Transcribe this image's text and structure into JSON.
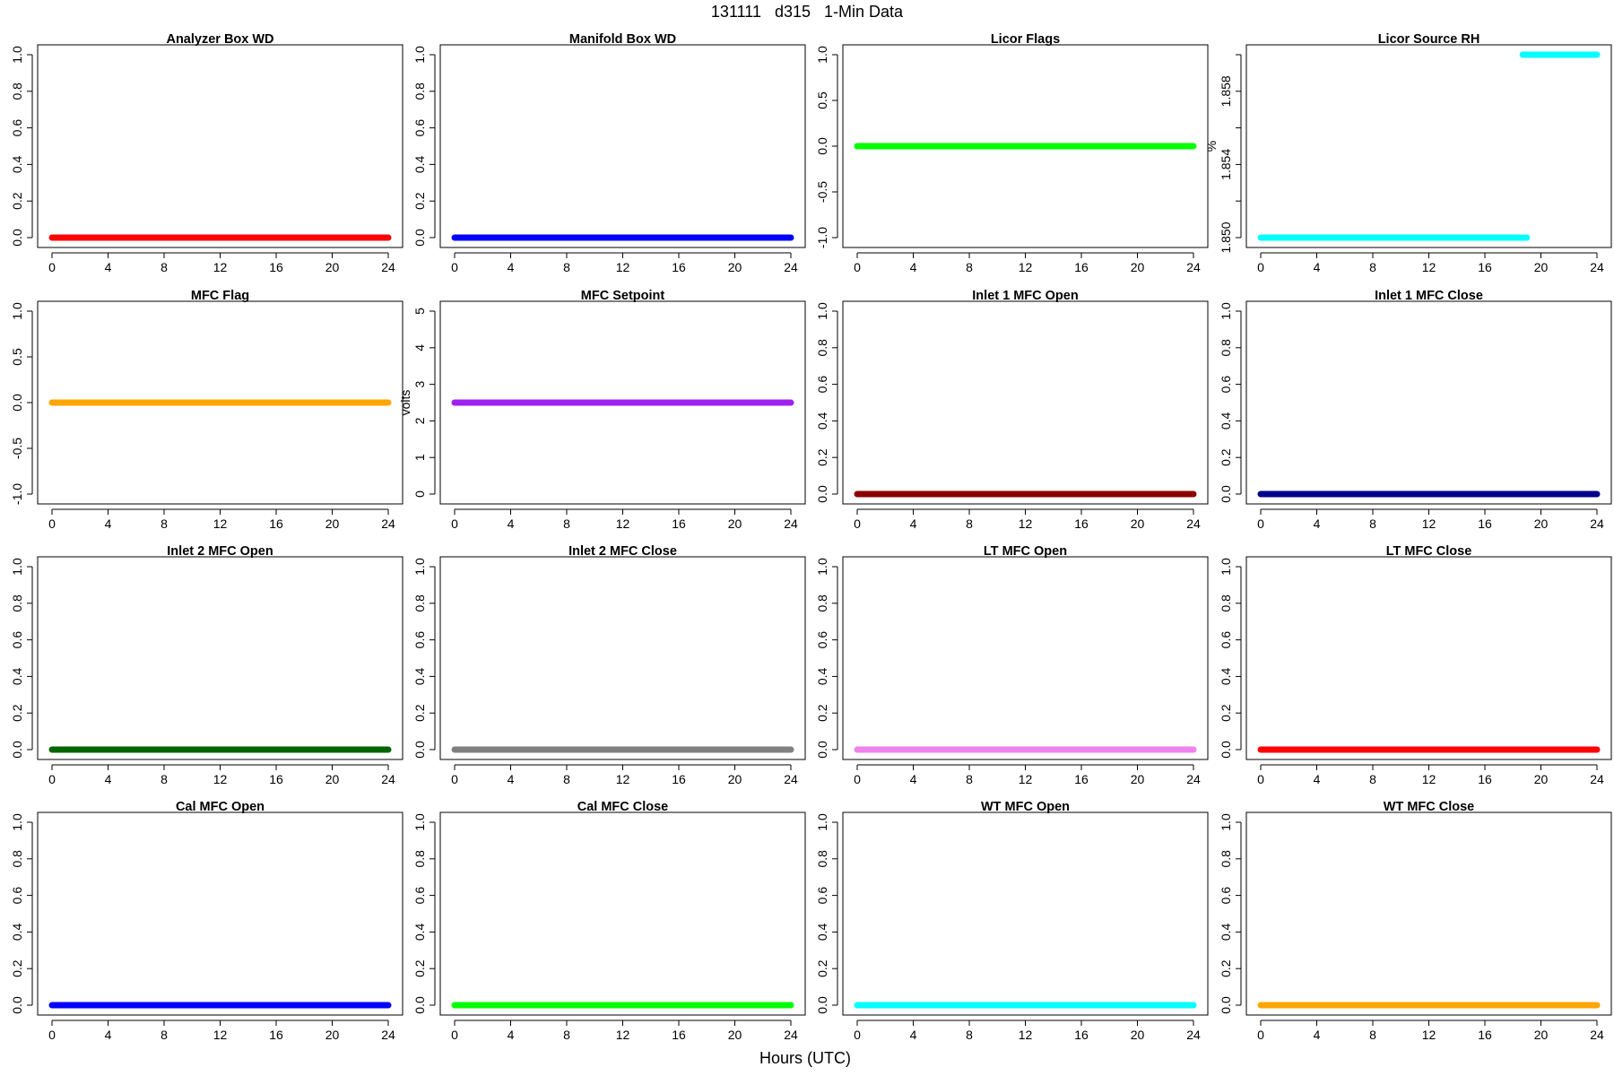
{
  "figure": {
    "suptitle": "131111   d315   1-Min Data",
    "xlabel": "Hours (UTC)"
  },
  "chart_data": [
    {
      "type": "scatter",
      "title": "Analyzer Box WD",
      "ylabel": "",
      "xlim": [
        0,
        24
      ],
      "ylim": [
        0,
        1
      ],
      "xticks": [
        0,
        4,
        8,
        12,
        16,
        20,
        24
      ],
      "yticks": [
        0,
        0.2,
        0.4,
        0.6,
        0.8,
        1
      ],
      "ytick_labels": [
        "0.0",
        "0.2",
        "0.4",
        "0.6",
        "0.8",
        "1.0"
      ],
      "series": [
        {
          "color": "#ff0000",
          "segments": [
            {
              "x": [
                0,
                24
              ],
              "y": 0
            }
          ]
        }
      ]
    },
    {
      "type": "scatter",
      "title": "Manifold Box WD",
      "ylabel": "",
      "xlim": [
        0,
        24
      ],
      "ylim": [
        0,
        1
      ],
      "xticks": [
        0,
        4,
        8,
        12,
        16,
        20,
        24
      ],
      "yticks": [
        0,
        0.2,
        0.4,
        0.6,
        0.8,
        1
      ],
      "ytick_labels": [
        "0.0",
        "0.2",
        "0.4",
        "0.6",
        "0.8",
        "1.0"
      ],
      "series": [
        {
          "color": "#0000ff",
          "segments": [
            {
              "x": [
                0,
                24
              ],
              "y": 0
            }
          ]
        }
      ]
    },
    {
      "type": "scatter",
      "title": "Licor Flags",
      "ylabel": "",
      "xlim": [
        0,
        24
      ],
      "ylim": [
        -1,
        1
      ],
      "xticks": [
        0,
        4,
        8,
        12,
        16,
        20,
        24
      ],
      "yticks": [
        -1,
        -0.5,
        0,
        0.5,
        1
      ],
      "ytick_labels": [
        "-1.0",
        "-0.5",
        "0.0",
        "0.5",
        "1.0"
      ],
      "series": [
        {
          "color": "#00ff00",
          "segments": [
            {
              "x": [
                0,
                24
              ],
              "y": 0
            }
          ]
        }
      ]
    },
    {
      "type": "scatter",
      "title": "Licor Source RH",
      "ylabel": "%",
      "xlim": [
        0,
        24
      ],
      "ylim": [
        1.85,
        1.86
      ],
      "xticks": [
        0,
        4,
        8,
        12,
        16,
        20,
        24
      ],
      "yticks": [
        1.85,
        1.852,
        1.854,
        1.856,
        1.858,
        1.86
      ],
      "ytick_labels": [
        "1.850",
        "",
        "1.854",
        "",
        "1.858",
        ""
      ],
      "series": [
        {
          "color": "#00ffff",
          "segments": [
            {
              "x": [
                0,
                19
              ],
              "y": 1.85
            },
            {
              "x": [
                18.7,
                24
              ],
              "y": 1.86
            }
          ]
        }
      ]
    },
    {
      "type": "scatter",
      "title": "MFC Flag",
      "ylabel": "",
      "xlim": [
        0,
        24
      ],
      "ylim": [
        -1,
        1
      ],
      "xticks": [
        0,
        4,
        8,
        12,
        16,
        20,
        24
      ],
      "yticks": [
        -1,
        -0.5,
        0,
        0.5,
        1
      ],
      "ytick_labels": [
        "-1.0",
        "-0.5",
        "0.0",
        "0.5",
        "1.0"
      ],
      "series": [
        {
          "color": "#ffa500",
          "segments": [
            {
              "x": [
                0,
                24
              ],
              "y": 0
            }
          ]
        }
      ]
    },
    {
      "type": "scatter",
      "title": "MFC Setpoint",
      "ylabel": "volts",
      "xlim": [
        0,
        24
      ],
      "ylim": [
        0,
        5
      ],
      "xticks": [
        0,
        4,
        8,
        12,
        16,
        20,
        24
      ],
      "yticks": [
        0,
        1,
        2,
        3,
        4,
        5
      ],
      "ytick_labels": [
        "0",
        "1",
        "2",
        "3",
        "4",
        "5"
      ],
      "series": [
        {
          "color": "#a020f0",
          "segments": [
            {
              "x": [
                0,
                24
              ],
              "y": 2.5
            }
          ]
        }
      ]
    },
    {
      "type": "scatter",
      "title": "Inlet 1 MFC Open",
      "ylabel": "",
      "xlim": [
        0,
        24
      ],
      "ylim": [
        0,
        1
      ],
      "xticks": [
        0,
        4,
        8,
        12,
        16,
        20,
        24
      ],
      "yticks": [
        0,
        0.2,
        0.4,
        0.6,
        0.8,
        1
      ],
      "ytick_labels": [
        "0.0",
        "0.2",
        "0.4",
        "0.6",
        "0.8",
        "1.0"
      ],
      "series": [
        {
          "color": "#8b0000",
          "segments": [
            {
              "x": [
                0,
                24
              ],
              "y": 0
            }
          ]
        }
      ]
    },
    {
      "type": "scatter",
      "title": "Inlet 1 MFC Close",
      "ylabel": "",
      "xlim": [
        0,
        24
      ],
      "ylim": [
        0,
        1
      ],
      "xticks": [
        0,
        4,
        8,
        12,
        16,
        20,
        24
      ],
      "yticks": [
        0,
        0.2,
        0.4,
        0.6,
        0.8,
        1
      ],
      "ytick_labels": [
        "0.0",
        "0.2",
        "0.4",
        "0.6",
        "0.8",
        "1.0"
      ],
      "series": [
        {
          "color": "#00008b",
          "segments": [
            {
              "x": [
                0,
                24
              ],
              "y": 0
            }
          ]
        }
      ]
    },
    {
      "type": "scatter",
      "title": "Inlet 2 MFC Open",
      "ylabel": "",
      "xlim": [
        0,
        24
      ],
      "ylim": [
        0,
        1
      ],
      "xticks": [
        0,
        4,
        8,
        12,
        16,
        20,
        24
      ],
      "yticks": [
        0,
        0.2,
        0.4,
        0.6,
        0.8,
        1
      ],
      "ytick_labels": [
        "0.0",
        "0.2",
        "0.4",
        "0.6",
        "0.8",
        "1.0"
      ],
      "series": [
        {
          "color": "#006400",
          "segments": [
            {
              "x": [
                0,
                24
              ],
              "y": 0
            }
          ]
        }
      ]
    },
    {
      "type": "scatter",
      "title": "Inlet 2 MFC Close",
      "ylabel": "",
      "xlim": [
        0,
        24
      ],
      "ylim": [
        0,
        1
      ],
      "xticks": [
        0,
        4,
        8,
        12,
        16,
        20,
        24
      ],
      "yticks": [
        0,
        0.2,
        0.4,
        0.6,
        0.8,
        1
      ],
      "ytick_labels": [
        "0.0",
        "0.2",
        "0.4",
        "0.6",
        "0.8",
        "1.0"
      ],
      "series": [
        {
          "color": "#808080",
          "segments": [
            {
              "x": [
                0,
                24
              ],
              "y": 0
            }
          ]
        }
      ]
    },
    {
      "type": "scatter",
      "title": "LT MFC Open",
      "ylabel": "",
      "xlim": [
        0,
        24
      ],
      "ylim": [
        0,
        1
      ],
      "xticks": [
        0,
        4,
        8,
        12,
        16,
        20,
        24
      ],
      "yticks": [
        0,
        0.2,
        0.4,
        0.6,
        0.8,
        1
      ],
      "ytick_labels": [
        "0.0",
        "0.2",
        "0.4",
        "0.6",
        "0.8",
        "1.0"
      ],
      "series": [
        {
          "color": "#ee82ee",
          "segments": [
            {
              "x": [
                0,
                24
              ],
              "y": 0
            }
          ]
        }
      ]
    },
    {
      "type": "scatter",
      "title": "LT MFC Close",
      "ylabel": "",
      "xlim": [
        0,
        24
      ],
      "ylim": [
        0,
        1
      ],
      "xticks": [
        0,
        4,
        8,
        12,
        16,
        20,
        24
      ],
      "yticks": [
        0,
        0.2,
        0.4,
        0.6,
        0.8,
        1
      ],
      "ytick_labels": [
        "0.0",
        "0.2",
        "0.4",
        "0.6",
        "0.8",
        "1.0"
      ],
      "series": [
        {
          "color": "#ff0000",
          "segments": [
            {
              "x": [
                0,
                24
              ],
              "y": 0
            }
          ]
        }
      ]
    },
    {
      "type": "scatter",
      "title": "Cal MFC Open",
      "ylabel": "",
      "xlim": [
        0,
        24
      ],
      "ylim": [
        0,
        1
      ],
      "xticks": [
        0,
        4,
        8,
        12,
        16,
        20,
        24
      ],
      "yticks": [
        0,
        0.2,
        0.4,
        0.6,
        0.8,
        1
      ],
      "ytick_labels": [
        "0.0",
        "0.2",
        "0.4",
        "0.6",
        "0.8",
        "1.0"
      ],
      "series": [
        {
          "color": "#0000ff",
          "segments": [
            {
              "x": [
                0,
                24
              ],
              "y": 0
            }
          ]
        }
      ]
    },
    {
      "type": "scatter",
      "title": "Cal MFC Close",
      "ylabel": "",
      "xlim": [
        0,
        24
      ],
      "ylim": [
        0,
        1
      ],
      "xticks": [
        0,
        4,
        8,
        12,
        16,
        20,
        24
      ],
      "yticks": [
        0,
        0.2,
        0.4,
        0.6,
        0.8,
        1
      ],
      "ytick_labels": [
        "0.0",
        "0.2",
        "0.4",
        "0.6",
        "0.8",
        "1.0"
      ],
      "series": [
        {
          "color": "#00ff00",
          "segments": [
            {
              "x": [
                0,
                24
              ],
              "y": 0
            }
          ]
        }
      ]
    },
    {
      "type": "scatter",
      "title": "WT MFC Open",
      "ylabel": "",
      "xlim": [
        0,
        24
      ],
      "ylim": [
        0,
        1
      ],
      "xticks": [
        0,
        4,
        8,
        12,
        16,
        20,
        24
      ],
      "yticks": [
        0,
        0.2,
        0.4,
        0.6,
        0.8,
        1
      ],
      "ytick_labels": [
        "0.0",
        "0.2",
        "0.4",
        "0.6",
        "0.8",
        "1.0"
      ],
      "series": [
        {
          "color": "#00ffff",
          "segments": [
            {
              "x": [
                0,
                24
              ],
              "y": 0
            }
          ]
        }
      ]
    },
    {
      "type": "scatter",
      "title": "WT MFC Close",
      "ylabel": "",
      "xlim": [
        0,
        24
      ],
      "ylim": [
        0,
        1
      ],
      "xticks": [
        0,
        4,
        8,
        12,
        16,
        20,
        24
      ],
      "yticks": [
        0,
        0.2,
        0.4,
        0.6,
        0.8,
        1
      ],
      "ytick_labels": [
        "0.0",
        "0.2",
        "0.4",
        "0.6",
        "0.8",
        "1.0"
      ],
      "series": [
        {
          "color": "#ffa500",
          "segments": [
            {
              "x": [
                0,
                24
              ],
              "y": 0
            }
          ]
        }
      ]
    }
  ]
}
